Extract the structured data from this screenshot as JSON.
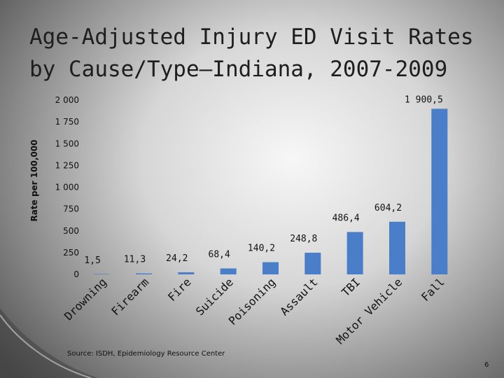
{
  "slide": {
    "title_line1": "Age-Adjusted Injury ED Visit Rates",
    "title_line2": "by Cause/Type—Indiana, 2007-2009",
    "source": "Source: ISDH, Epidemiology Resource Center",
    "slide_number": "6"
  },
  "chart_data": {
    "type": "bar",
    "title": "Age-Adjusted Injury ED Visit Rates by Cause/Type—Indiana, 2007-2009",
    "xlabel": "",
    "ylabel": "Rate per 100,000",
    "ylim": [
      0,
      2000
    ],
    "yticks": [
      0,
      250,
      500,
      750,
      1000,
      1250,
      1500,
      1750,
      2000
    ],
    "ytick_labels": [
      "0",
      "250",
      "500",
      "750",
      "1 000",
      "1 250",
      "1 500",
      "1 750",
      "2 000"
    ],
    "categories": [
      "Drowning",
      "Firearm",
      "Fire",
      "Suicide",
      "Poisoning",
      "Assault",
      "TBI",
      "Motor Vehicle",
      "Fall"
    ],
    "values": [
      1.5,
      11.3,
      24.2,
      68.4,
      140.2,
      248.8,
      486.4,
      604.2,
      1900.5
    ],
    "data_labels": [
      "1,5",
      "11,3",
      "24,2",
      "68,4",
      "140,2",
      "248,8",
      "486,4",
      "604,2",
      "1 900,5"
    ],
    "bar_color": "#4a7ec9",
    "grid": false,
    "legend": "none"
  }
}
